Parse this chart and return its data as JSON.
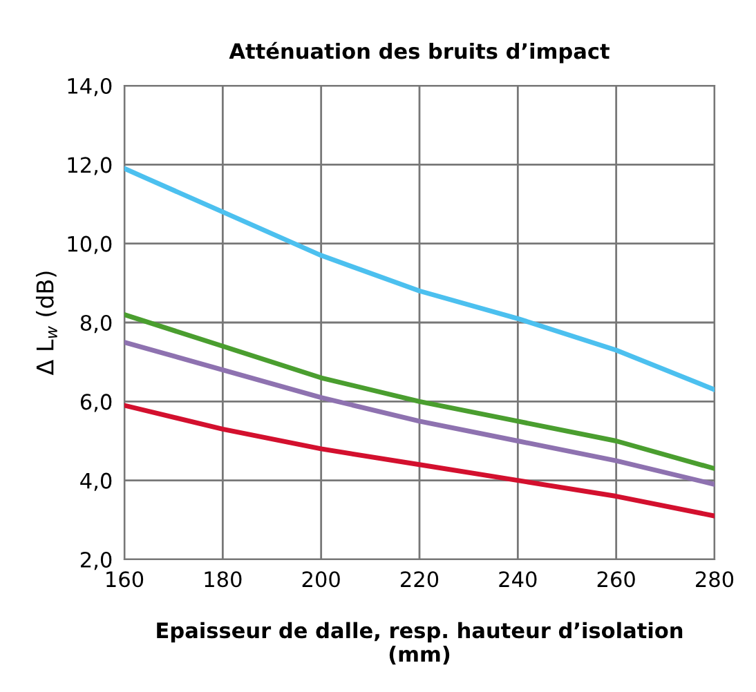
{
  "chart_data": {
    "type": "line",
    "title": "Atténuation des bruits d’impact",
    "xlabel": "Epaisseur de dalle, resp. hauteur d’isolation\n(mm)",
    "ylabel": "Δ L$_{w}$ (dB)",
    "x": [
      160,
      180,
      200,
      220,
      240,
      260,
      280
    ],
    "series": [
      {
        "color": "#4cc0ef",
        "values": [
          11.9,
          10.8,
          9.7,
          8.8,
          8.1,
          7.3,
          6.3
        ]
      },
      {
        "color": "#4a9e2f",
        "values": [
          8.2,
          7.4,
          6.6,
          6.0,
          5.5,
          5.0,
          4.3
        ]
      },
      {
        "color": "#8e72b0",
        "values": [
          7.5,
          6.8,
          6.1,
          5.5,
          5.0,
          4.5,
          3.9
        ]
      },
      {
        "color": "#d3102e",
        "values": [
          5.9,
          5.3,
          4.8,
          4.4,
          4.0,
          3.6,
          3.1
        ]
      }
    ],
    "xlim": [
      160,
      280
    ],
    "xticks": [
      160,
      180,
      200,
      220,
      240,
      260,
      280
    ],
    "ylim": [
      2,
      14
    ],
    "yticks": [
      {
        "value": 2,
        "label": "2,0"
      },
      {
        "value": 4,
        "label": "4,0"
      },
      {
        "value": 6,
        "label": "6,0"
      },
      {
        "value": 8,
        "label": "8,0"
      },
      {
        "value": 10,
        "label": "10,0"
      },
      {
        "value": 12,
        "label": "12,0"
      },
      {
        "value": 14,
        "label": "14,0"
      }
    ],
    "grid": true,
    "marker": "none",
    "line_style": "solid"
  }
}
